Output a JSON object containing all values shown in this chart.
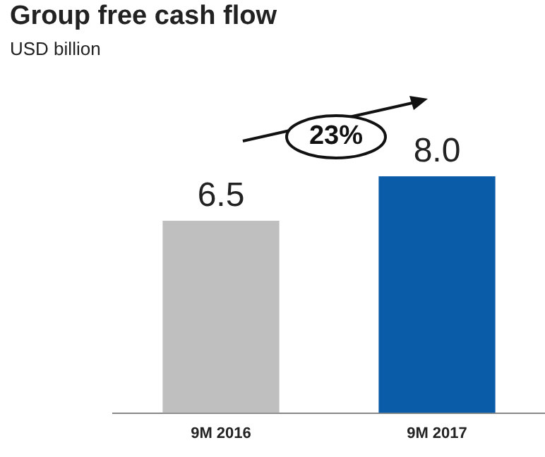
{
  "chart_data": {
    "type": "bar",
    "title": "Group free cash flow",
    "subtitle": "USD billion",
    "categories": [
      "9M 2016",
      "9M 2017"
    ],
    "values": [
      6.5,
      8.0
    ],
    "colors": [
      "#bfbfbf",
      "#0b5ca8"
    ],
    "value_labels": [
      "6.5",
      "8.0"
    ],
    "annotations": [
      "23%"
    ],
    "grid": false,
    "legend": false
  }
}
